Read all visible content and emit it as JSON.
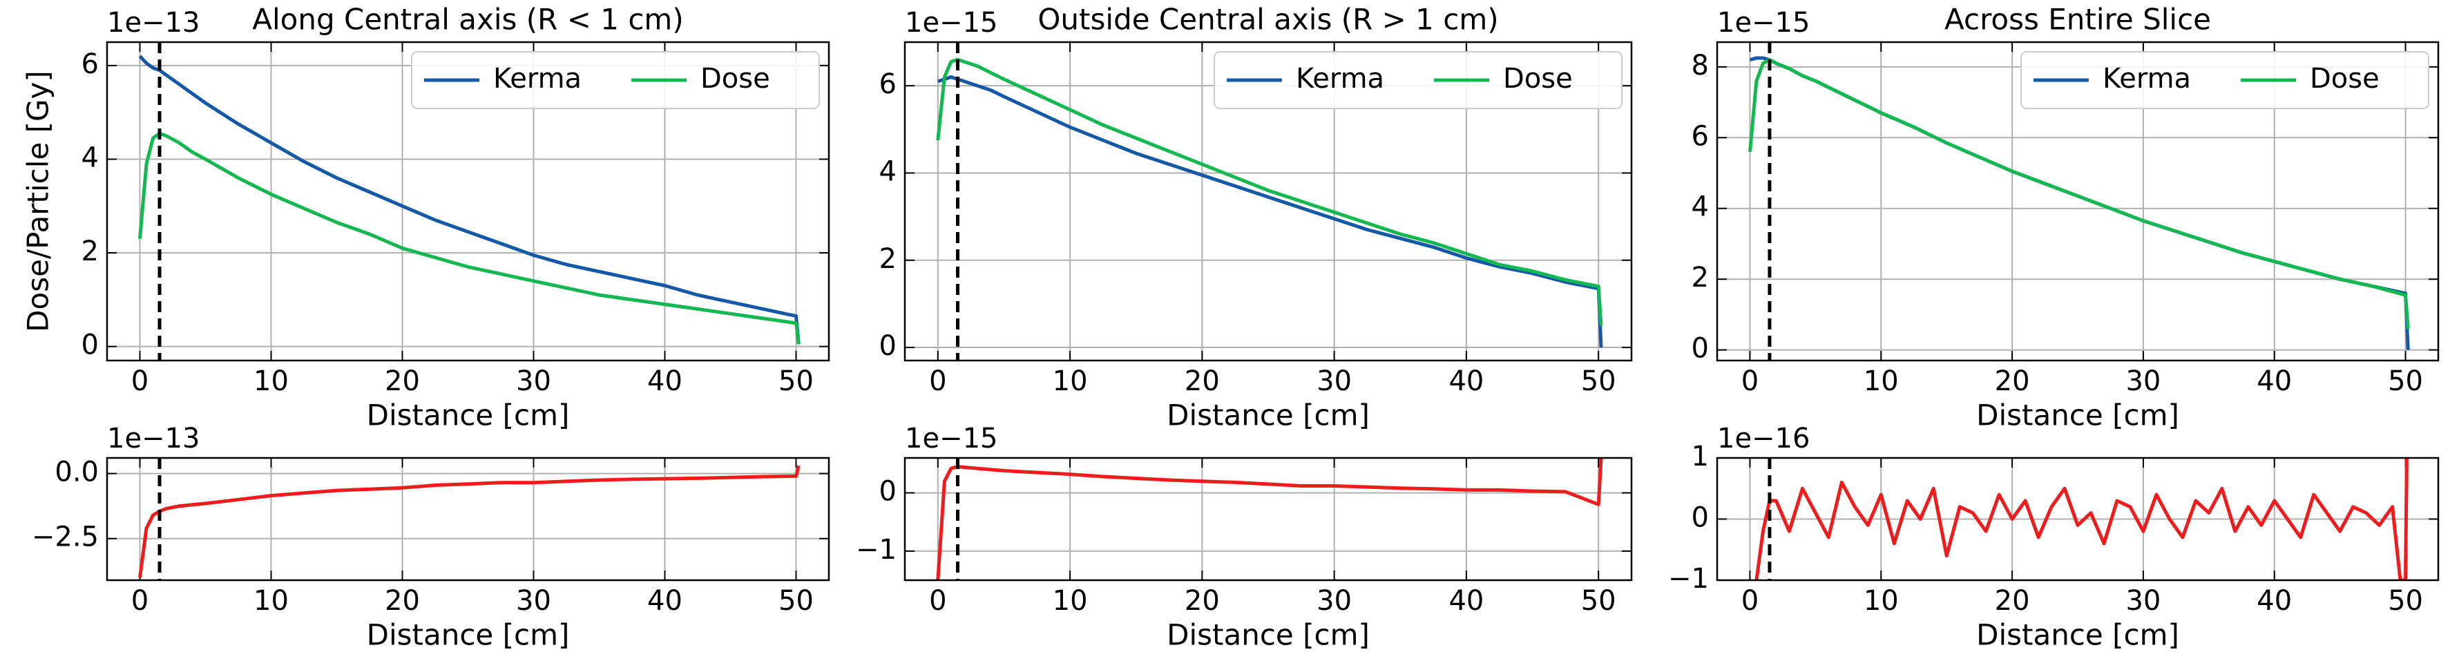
{
  "chart_data": [
    {
      "type": "line",
      "title": "Along Central axis (R < 1 cm)",
      "x_label": "Distance [cm]",
      "y_label": "Dose/Particle [Gy]",
      "offset_text": "1e−13",
      "x": [
        0,
        0.5,
        1,
        1.5,
        2,
        3,
        4,
        5,
        7.5,
        10,
        12.5,
        15,
        17.5,
        20,
        22.5,
        25,
        27.5,
        30,
        32.5,
        35,
        37.5,
        40,
        42.5,
        45,
        47.5,
        50,
        50.2
      ],
      "series": [
        {
          "name": "Kerma",
          "color": "#1459a8",
          "values": [
            6.2,
            6.05,
            5.95,
            5.9,
            5.8,
            5.6,
            5.4,
            5.2,
            4.75,
            4.35,
            3.95,
            3.6,
            3.3,
            3.0,
            2.7,
            2.45,
            2.2,
            1.95,
            1.75,
            1.6,
            1.45,
            1.3,
            1.1,
            0.95,
            0.8,
            0.65,
            0.05
          ]
        },
        {
          "name": "Dose",
          "color": "#14b850",
          "values": [
            2.3,
            3.9,
            4.45,
            4.55,
            4.5,
            4.35,
            4.15,
            4.0,
            3.6,
            3.25,
            2.95,
            2.65,
            2.4,
            2.1,
            1.9,
            1.7,
            1.55,
            1.4,
            1.25,
            1.1,
            1.0,
            0.9,
            0.8,
            0.7,
            0.6,
            0.5,
            0.05
          ]
        }
      ],
      "xlim": [
        -2.5,
        52.5
      ],
      "xticks": [
        0,
        10,
        20,
        30,
        40,
        50
      ],
      "ylim": [
        -0.3,
        6.5
      ],
      "yticks": [
        0,
        2,
        4,
        6
      ],
      "vline": 1.5,
      "grid": true,
      "legend": "upper right"
    },
    {
      "type": "line",
      "title": "Outside Central axis (R > 1 cm)",
      "x_label": "Distance [cm]",
      "offset_text": "1e−15",
      "x": [
        0,
        0.5,
        1,
        1.5,
        2,
        3,
        4,
        5,
        7.5,
        10,
        12.5,
        15,
        17.5,
        20,
        22.5,
        25,
        27.5,
        30,
        32.5,
        35,
        37.5,
        40,
        42.5,
        45,
        47.5,
        50,
        50.2
      ],
      "series": [
        {
          "name": "Kerma",
          "color": "#1459a8",
          "values": [
            6.1,
            6.15,
            6.2,
            6.15,
            6.1,
            6.0,
            5.9,
            5.75,
            5.4,
            5.05,
            4.75,
            4.45,
            4.2,
            3.95,
            3.7,
            3.45,
            3.2,
            2.95,
            2.7,
            2.5,
            2.3,
            2.05,
            1.85,
            1.7,
            1.5,
            1.35,
            0.0
          ]
        },
        {
          "name": "Dose",
          "color": "#14b850",
          "values": [
            4.75,
            6.2,
            6.55,
            6.6,
            6.55,
            6.45,
            6.3,
            6.15,
            5.8,
            5.45,
            5.1,
            4.8,
            4.5,
            4.2,
            3.9,
            3.6,
            3.35,
            3.1,
            2.85,
            2.6,
            2.4,
            2.15,
            1.9,
            1.75,
            1.55,
            1.4,
            0.5
          ]
        }
      ],
      "xlim": [
        -2.5,
        52.5
      ],
      "xticks": [
        0,
        10,
        20,
        30,
        40,
        50
      ],
      "ylim": [
        -0.3,
        7
      ],
      "yticks": [
        0,
        2,
        4,
        6
      ],
      "vline": 1.5,
      "grid": true,
      "legend": "upper right"
    },
    {
      "type": "line",
      "title": "Across Entire Slice",
      "x_label": "Distance [cm]",
      "offset_text": "1e−15",
      "x": [
        0,
        0.5,
        1,
        1.5,
        2,
        3,
        4,
        5,
        7.5,
        10,
        12.5,
        15,
        17.5,
        20,
        22.5,
        25,
        27.5,
        30,
        32.5,
        35,
        37.5,
        40,
        42.5,
        45,
        47.5,
        50,
        50.2
      ],
      "series": [
        {
          "name": "Kerma",
          "color": "#1459a8",
          "values": [
            8.2,
            8.25,
            8.25,
            8.2,
            8.1,
            7.95,
            7.75,
            7.6,
            7.15,
            6.7,
            6.3,
            5.85,
            5.45,
            5.05,
            4.7,
            4.35,
            4.0,
            3.65,
            3.35,
            3.05,
            2.75,
            2.5,
            2.25,
            2.0,
            1.8,
            1.6,
            0.0
          ]
        },
        {
          "name": "Dose",
          "color": "#14b850",
          "values": [
            5.6,
            7.6,
            8.1,
            8.2,
            8.1,
            7.95,
            7.75,
            7.6,
            7.15,
            6.7,
            6.3,
            5.85,
            5.45,
            5.05,
            4.7,
            4.35,
            4.0,
            3.65,
            3.35,
            3.05,
            2.75,
            2.5,
            2.25,
            2.0,
            1.8,
            1.55,
            0.6
          ]
        }
      ],
      "xlim": [
        -2.5,
        52.5
      ],
      "xticks": [
        0,
        10,
        20,
        30,
        40,
        50
      ],
      "ylim": [
        -0.3,
        8.7
      ],
      "yticks": [
        0,
        2,
        4,
        6,
        8
      ],
      "vline": 1.5,
      "grid": true,
      "legend": "upper right"
    },
    {
      "type": "line",
      "x_label": "Distance [cm]",
      "offset_text": "1e−13",
      "x": [
        0,
        0.5,
        1,
        1.5,
        2,
        3,
        4,
        5,
        7.5,
        10,
        12.5,
        15,
        17.5,
        20,
        22.5,
        25,
        27.5,
        30,
        32.5,
        35,
        37.5,
        40,
        42.5,
        45,
        47.5,
        50,
        50.2
      ],
      "series": [
        {
          "color": "#ee1c1c",
          "values": [
            -4.0,
            -2.1,
            -1.6,
            -1.45,
            -1.35,
            -1.25,
            -1.2,
            -1.15,
            -1.0,
            -0.85,
            -0.75,
            -0.65,
            -0.6,
            -0.55,
            -0.45,
            -0.4,
            -0.35,
            -0.35,
            -0.3,
            -0.25,
            -0.22,
            -0.2,
            -0.18,
            -0.15,
            -0.12,
            -0.1,
            0.3
          ]
        }
      ],
      "xlim": [
        -2.5,
        52.5
      ],
      "xticks": [
        0,
        10,
        20,
        30,
        40,
        50
      ],
      "ylim": [
        -4.1,
        0.6
      ],
      "yticks": [
        {
          "value": 0,
          "label": "0.0"
        },
        {
          "value": -2.5,
          "label": "−2.5"
        }
      ],
      "vline": 1.5,
      "grid": true
    },
    {
      "type": "line",
      "x_label": "Distance [cm]",
      "offset_text": "1e−15",
      "x": [
        0,
        0.5,
        1,
        1.5,
        2,
        3,
        4,
        5,
        7.5,
        10,
        12.5,
        15,
        17.5,
        20,
        22.5,
        25,
        27.5,
        30,
        32.5,
        35,
        37.5,
        40,
        42.5,
        45,
        47.5,
        50,
        50.2
      ],
      "series": [
        {
          "color": "#ee1c1c",
          "values": [
            -1.5,
            0.2,
            0.42,
            0.45,
            0.44,
            0.42,
            0.4,
            0.38,
            0.35,
            0.32,
            0.28,
            0.25,
            0.22,
            0.2,
            0.18,
            0.15,
            0.12,
            0.12,
            0.1,
            0.08,
            0.07,
            0.05,
            0.05,
            0.03,
            0.02,
            -0.2,
            0.6
          ]
        }
      ],
      "xlim": [
        -2.5,
        52.5
      ],
      "xticks": [
        0,
        10,
        20,
        30,
        40,
        50
      ],
      "ylim": [
        -1.5,
        0.6
      ],
      "yticks": [
        {
          "value": -1,
          "label": "−1"
        },
        0
      ],
      "vline": 1.5,
      "grid": true
    },
    {
      "type": "line",
      "x_label": "Distance [cm]",
      "offset_text": "1e−16",
      "x": [
        0.5,
        1,
        1.5,
        2,
        3,
        4,
        5,
        6,
        7,
        8,
        9,
        10,
        11,
        12,
        13,
        14,
        15,
        16,
        17,
        18,
        19,
        20,
        21,
        22,
        23,
        24,
        25,
        26,
        27,
        28,
        29,
        30,
        31,
        32,
        33,
        34,
        35,
        36,
        37,
        38,
        39,
        40,
        41,
        42,
        43,
        44,
        45,
        46,
        47,
        48,
        49,
        49.6,
        50,
        50.1
      ],
      "series": [
        {
          "color": "#ee1c1c",
          "values": [
            -1,
            -0.2,
            0.3,
            0.3,
            -0.2,
            0.5,
            0.1,
            -0.3,
            0.6,
            0.2,
            -0.1,
            0.4,
            -0.4,
            0.3,
            0.0,
            0.5,
            -0.6,
            0.2,
            0.1,
            -0.2,
            0.4,
            0.0,
            0.3,
            -0.3,
            0.2,
            0.5,
            -0.1,
            0.1,
            -0.4,
            0.3,
            0.2,
            -0.2,
            0.4,
            0.0,
            -0.3,
            0.3,
            0.1,
            0.5,
            -0.2,
            0.2,
            -0.1,
            0.3,
            0.0,
            -0.3,
            0.4,
            0.1,
            -0.2,
            0.2,
            0.1,
            -0.1,
            0.2,
            -1,
            -1,
            1
          ]
        }
      ],
      "xlim": [
        -2.5,
        52.5
      ],
      "xticks": [
        0,
        10,
        20,
        30,
        40,
        50
      ],
      "ylim": [
        -1,
        1
      ],
      "yticks": [
        {
          "value": -1,
          "label": "−1"
        },
        0,
        1
      ],
      "vline": 1.5,
      "grid": true
    }
  ]
}
